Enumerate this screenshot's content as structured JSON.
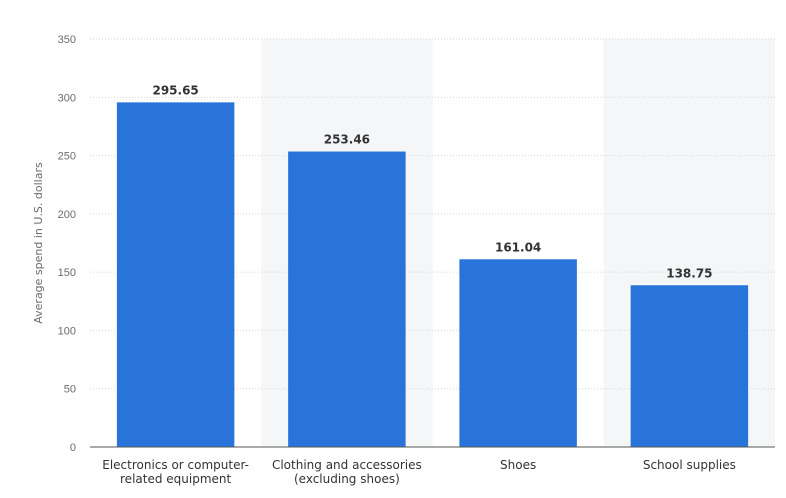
{
  "chart_data": {
    "type": "bar",
    "categories": [
      [
        "Electronics or computer-",
        "related equipment"
      ],
      [
        "Clothing and accessories",
        "(excluding shoes)"
      ],
      [
        "Shoes"
      ],
      [
        "School supplies"
      ]
    ],
    "values": [
      295.65,
      253.46,
      161.04,
      138.75
    ],
    "value_labels": [
      "295.65",
      "253.46",
      "161.04",
      "138.75"
    ],
    "ylabel": "Average spend in U.S. dollars",
    "xlabel": "",
    "ylim": [
      0,
      350
    ],
    "yticks": [
      0,
      50,
      100,
      150,
      200,
      250,
      300,
      350
    ],
    "grid": true,
    "bar_color": "#2874db",
    "band_color": "#f5f6f8"
  }
}
